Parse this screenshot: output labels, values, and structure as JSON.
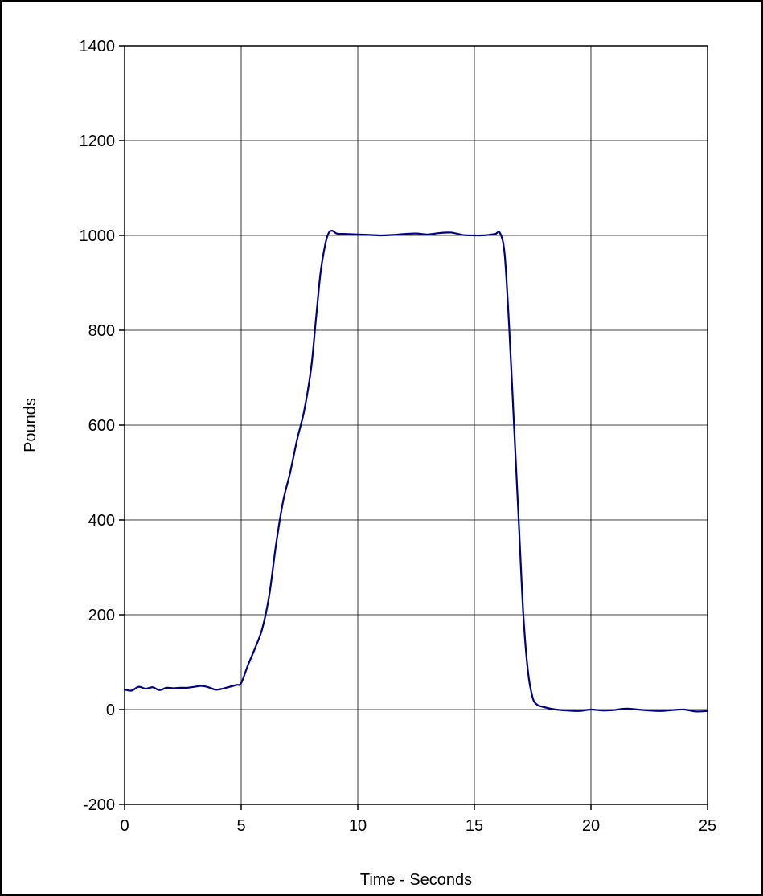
{
  "chart_data": {
    "type": "line",
    "xlabel": "Time - Seconds",
    "ylabel": "Pounds",
    "xlim": [
      0,
      25
    ],
    "ylim": [
      -200,
      1400
    ],
    "xticks": [
      0,
      5,
      10,
      15,
      20,
      25
    ],
    "yticks": [
      -200,
      0,
      200,
      400,
      600,
      800,
      1000,
      1200,
      1400
    ],
    "grid": true,
    "legend": "none",
    "series": [
      {
        "color": "#000080",
        "x": [
          0,
          0.3,
          0.6,
          0.9,
          1.2,
          1.5,
          1.8,
          2.1,
          2.4,
          2.7,
          3.0,
          3.3,
          3.6,
          3.9,
          4.2,
          4.5,
          4.8,
          5.0,
          5.3,
          5.6,
          5.9,
          6.2,
          6.5,
          6.8,
          7.1,
          7.4,
          7.7,
          8.0,
          8.2,
          8.4,
          8.6,
          8.75,
          8.9,
          9.1,
          9.5,
          10.0,
          10.5,
          11.0,
          11.5,
          12.0,
          12.5,
          13.0,
          13.5,
          14.0,
          14.5,
          15.0,
          15.3,
          15.6,
          15.9,
          16.1,
          16.3,
          16.5,
          16.7,
          16.9,
          17.1,
          17.3,
          17.5,
          17.7,
          18.0,
          18.5,
          19.0,
          19.5,
          20.0,
          20.5,
          21.0,
          21.5,
          22.0,
          22.5,
          23.0,
          23.5,
          24.0,
          24.5,
          25.0
        ],
        "y": [
          42,
          40,
          48,
          44,
          47,
          41,
          46,
          45,
          46,
          46,
          48,
          50,
          47,
          42,
          44,
          48,
          52,
          56,
          95,
          130,
          170,
          240,
          350,
          440,
          500,
          570,
          630,
          720,
          820,
          920,
          980,
          1005,
          1010,
          1004,
          1003,
          1002,
          1001,
          1000,
          1001,
          1003,
          1004,
          1002,
          1005,
          1006,
          1001,
          1000,
          1000,
          1001,
          1003,
          1005,
          960,
          800,
          600,
          400,
          200,
          80,
          25,
          10,
          5,
          0,
          -2,
          -3,
          0,
          -2,
          -1,
          2,
          0,
          -2,
          -3,
          -1,
          0,
          -4,
          -3
        ]
      }
    ]
  }
}
